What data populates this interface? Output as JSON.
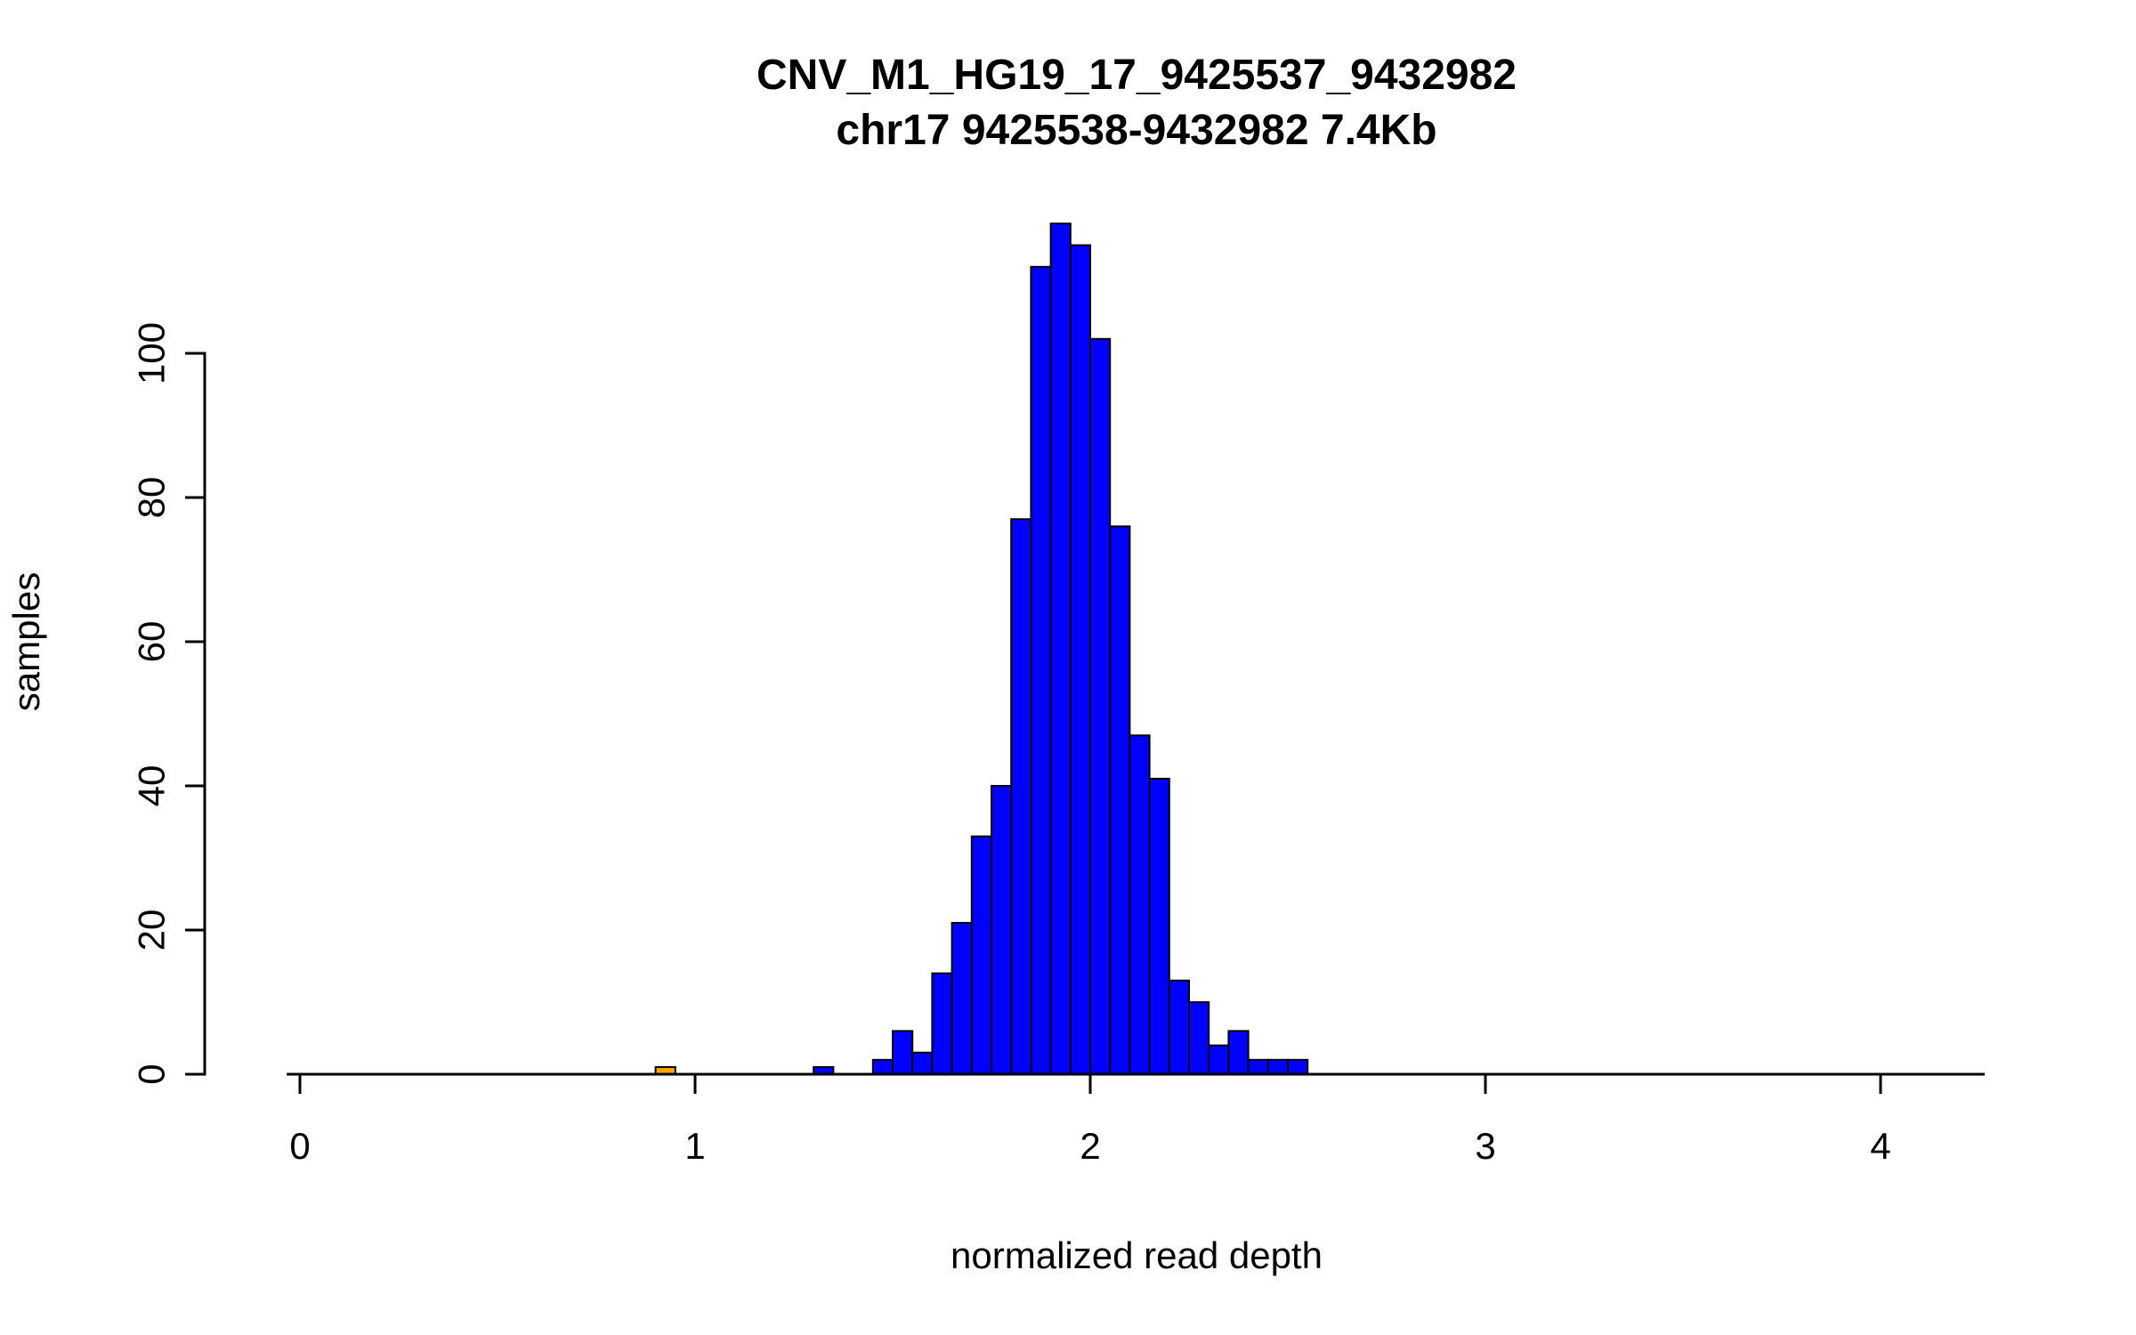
{
  "chart_data": {
    "type": "bar",
    "title": "CNV_M1_HG19_17_9425537_9432982",
    "subtitle": "chr17 9425538-9432982 7.4Kb",
    "xlabel": "normalized read depth",
    "ylabel": "samples",
    "x_ticks": [
      0,
      1,
      2,
      3,
      4
    ],
    "y_ticks": [
      0,
      20,
      40,
      60,
      80,
      100
    ],
    "xlim": [
      -0.03,
      4.26
    ],
    "ylim": [
      0,
      118
    ],
    "bin_width": 0.05,
    "grid": "off",
    "legend": "none",
    "bar_color": "#0000FF",
    "bar_edge_color": "#000000",
    "highlight_color": "#FFA500",
    "bars": [
      {
        "x": 0.9,
        "h": 1,
        "color": "#FFA500"
      },
      {
        "x": 1.3,
        "h": 1
      },
      {
        "x": 1.45,
        "h": 2
      },
      {
        "x": 1.5,
        "h": 6
      },
      {
        "x": 1.55,
        "h": 3
      },
      {
        "x": 1.6,
        "h": 14
      },
      {
        "x": 1.65,
        "h": 21
      },
      {
        "x": 1.7,
        "h": 33
      },
      {
        "x": 1.75,
        "h": 40
      },
      {
        "x": 1.8,
        "h": 77
      },
      {
        "x": 1.85,
        "h": 112
      },
      {
        "x": 1.9,
        "h": 118
      },
      {
        "x": 1.95,
        "h": 115
      },
      {
        "x": 2.0,
        "h": 102
      },
      {
        "x": 2.05,
        "h": 76
      },
      {
        "x": 2.1,
        "h": 47
      },
      {
        "x": 2.15,
        "h": 41
      },
      {
        "x": 2.2,
        "h": 13
      },
      {
        "x": 2.25,
        "h": 10
      },
      {
        "x": 2.3,
        "h": 4
      },
      {
        "x": 2.35,
        "h": 6
      },
      {
        "x": 2.4,
        "h": 2
      },
      {
        "x": 2.45,
        "h": 2
      },
      {
        "x": 2.5,
        "h": 2
      }
    ]
  }
}
